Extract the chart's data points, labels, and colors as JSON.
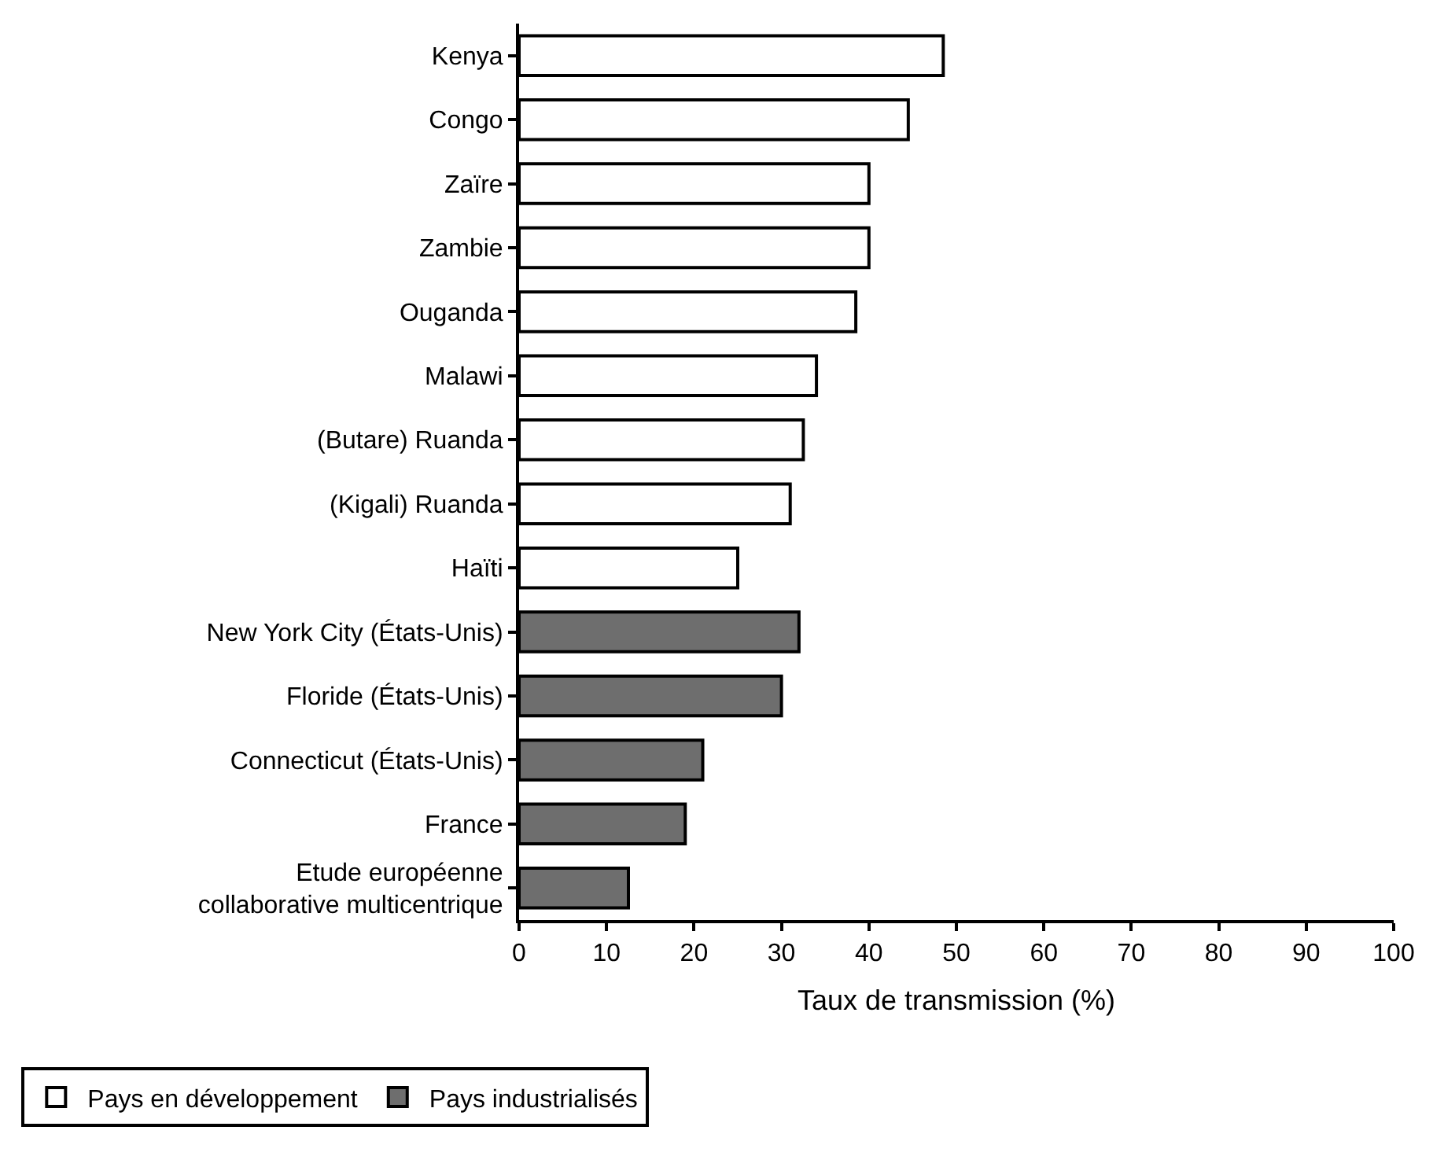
{
  "chart_data": {
    "type": "bar",
    "orientation": "horizontal",
    "xlabel": "Taux de transmission (%)",
    "categories": [
      "Kenya",
      "Congo",
      "Zaïre",
      "Zambie",
      "Ouganda",
      "Malawi",
      "(Butare) Ruanda",
      "(Kigali) Ruanda",
      "Haïti",
      "New York City (États-Unis)",
      "Floride (États-Unis)",
      "Connecticut (États-Unis)",
      "France",
      "Etude européenne\ncollaborative multicentrique"
    ],
    "series": [
      {
        "name": "Pays en développement",
        "color": "#ffffff",
        "values": [
          48.5,
          44.5,
          40,
          40,
          38.5,
          34,
          32.5,
          31,
          25,
          null,
          null,
          null,
          null,
          null
        ]
      },
      {
        "name": "Pays industrialisés",
        "color": "#6e6e6e",
        "values": [
          null,
          null,
          null,
          null,
          null,
          null,
          null,
          null,
          null,
          32,
          30,
          21,
          19,
          12.5
        ]
      }
    ],
    "xlim": [
      0,
      100
    ],
    "xticks": [
      0,
      10,
      20,
      30,
      40,
      50,
      60,
      70,
      80,
      90,
      100
    ],
    "legend": "bottom left"
  }
}
